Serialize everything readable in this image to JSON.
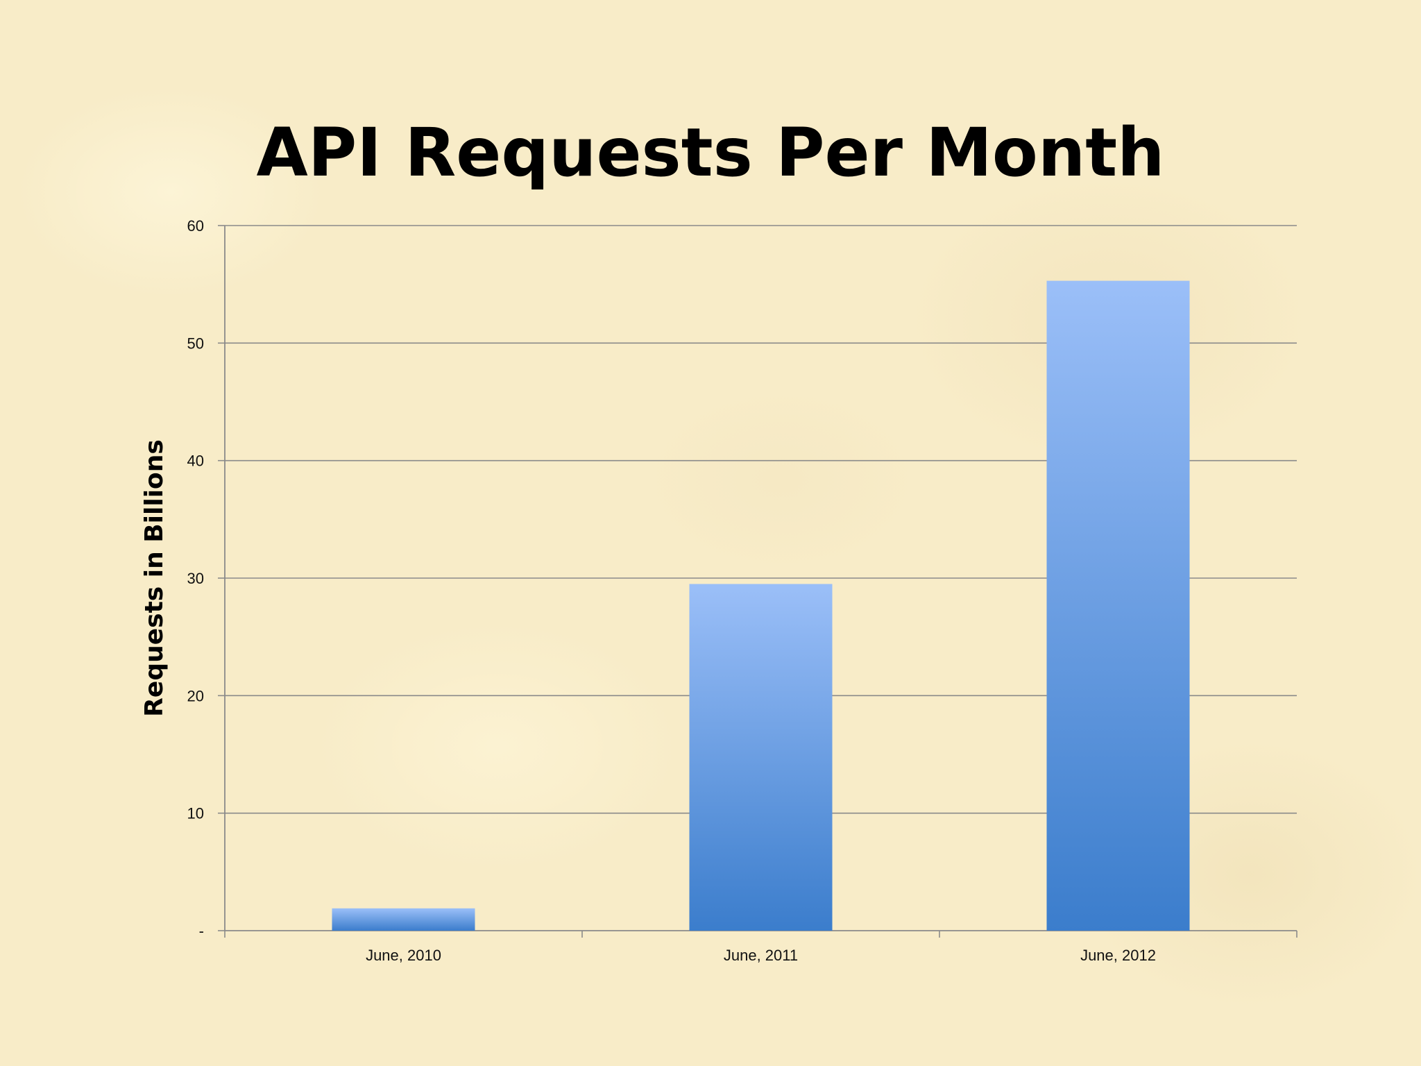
{
  "chart_data": {
    "type": "bar",
    "title": "API Requests Per Month",
    "xlabel": "",
    "ylabel": "Requests in Billions",
    "categories": [
      "June, 2010",
      "June, 2011",
      "June, 2012"
    ],
    "values": [
      1.9,
      29.5,
      55.3
    ],
    "ylim": [
      0,
      60
    ],
    "yticks": [
      {
        "value": 0,
        "label": "-"
      },
      {
        "value": 10,
        "label": "10"
      },
      {
        "value": 20,
        "label": "20"
      },
      {
        "value": 30,
        "label": "30"
      },
      {
        "value": 40,
        "label": "40"
      },
      {
        "value": 50,
        "label": "50"
      },
      {
        "value": 60,
        "label": "60"
      }
    ],
    "grid": true,
    "legend": "none",
    "bar_color_top": "#9bbff8",
    "bar_color_bottom": "#3b7dcc"
  }
}
